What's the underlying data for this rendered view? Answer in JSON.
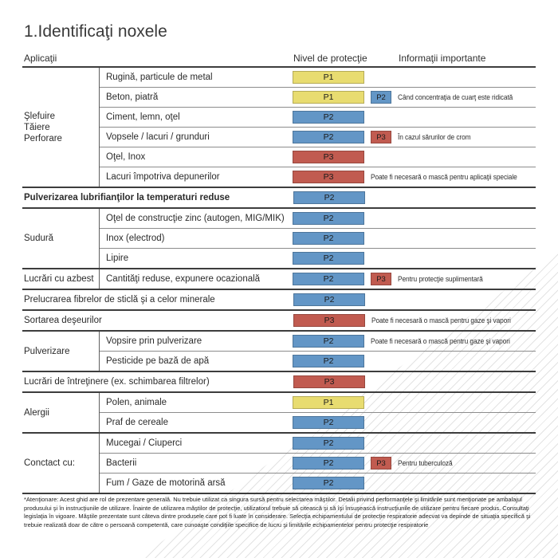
{
  "title": "1.Identificaţi noxele",
  "columns": {
    "applications": "Aplicaţii",
    "protection": "Nivel de protecţie",
    "info": "Informaţii importante"
  },
  "badge_colors": {
    "P1": "#e8dc70",
    "P2": "#6396c6",
    "P3": "#c15b50"
  },
  "table": {
    "sections": [
      {
        "category": [
          "Şlefuire",
          "Tăiere",
          "Perforare"
        ],
        "rows": [
          {
            "label": "Rugină, particule de metal",
            "badge": "P1"
          },
          {
            "label": "Beton, piatră",
            "badge": "P1",
            "badge2": "P2",
            "note": "Când concentraţia de cuarţ este ridicată"
          },
          {
            "label": "Ciment, lemn, oţel",
            "badge": "P2"
          },
          {
            "label": "Vopsele / lacuri / grunduri",
            "badge": "P2",
            "badge2": "P3",
            "note": "În cazul sărurilor de crom"
          },
          {
            "label": "Oţel, Inox",
            "badge": "P3"
          },
          {
            "label": "Lacuri împotriva depunerilor",
            "badge": "P3",
            "note": "Poate fi necesară o mască pentru aplicaţii speciale"
          }
        ]
      },
      {
        "rows": [
          {
            "label": "Pulverizarea lubrifianţilor la temperaturi reduse",
            "badge": "P2",
            "bold": true
          }
        ]
      },
      {
        "category": [
          "Sudură"
        ],
        "rows": [
          {
            "label": "Oţel de construcţie zinc (autogen, MIG/MIK)",
            "badge": "P2"
          },
          {
            "label": "Inox (electrod)",
            "badge": "P2"
          },
          {
            "label": "Lipire",
            "badge": "P2"
          }
        ]
      },
      {
        "category": [
          "Lucrări cu azbest"
        ],
        "rows": [
          {
            "label": "Cantităţi reduse, expunere ocazională",
            "badge": "P2",
            "badge2": "P3",
            "note": "Pentru protecţie suplimentară"
          }
        ]
      },
      {
        "rows": [
          {
            "label": "Prelucrarea fibrelor de sticlă şi a celor minerale",
            "badge": "P2"
          }
        ]
      },
      {
        "rows": [
          {
            "label": "Sortarea deşeurilor",
            "badge": "P3",
            "note": "Poate fi necesară o mască pentru gaze şi vapori"
          }
        ]
      },
      {
        "category": [
          "Pulverizare"
        ],
        "rows": [
          {
            "label": "Vopsire prin pulverizare",
            "badge": "P2",
            "note": "Poate fi necesară o mască pentru gaze şi vapori"
          },
          {
            "label": "Pesticide pe bază de apă",
            "badge": "P2"
          }
        ]
      },
      {
        "rows": [
          {
            "label": "Lucrări de întreţinere (ex. schimbarea filtrelor)",
            "badge": "P3"
          }
        ]
      },
      {
        "category": [
          "Alergii"
        ],
        "rows": [
          {
            "label": "Polen, animale",
            "badge": "P1"
          },
          {
            "label": "Praf de cereale",
            "badge": "P2"
          }
        ]
      },
      {
        "category": [
          "Conctact cu:"
        ],
        "rows": [
          {
            "label": "Mucegai / Ciuperci",
            "badge": "P2"
          },
          {
            "label": "Bacterii",
            "badge": "P2",
            "badge2": "P3",
            "note": "Pentru tuberculoză"
          },
          {
            "label": "Fum / Gaze de motorină arsă",
            "badge": "P2"
          }
        ]
      }
    ]
  },
  "footnote": "*Atenţionare: Acest ghid are rol de prezentare generală. Nu trebuie utilizat ca singura sursă pentru selectarea măştilor. Detalii privind performanţele şi limitările sunt menţionate pe ambalajul produsului şi în instrucţiunile de utilizare. Înainte de utilizarea măştilor de protecţie, utilizatorul trebuie să citească şi să îşi însuşească instrucţiunile de utilizare pentru fiecare produs. Consultaţi legislaţia în vigoare. Măştile prezentate sunt câteva dintre produsele care pot fi luate în considerare. Selecţia echipamentului de protecţie respiratorie adecvat va depinde de situaţia specifică şi trebuie realizată doar de către o persoană competentă, care cunoaşte condiţiile specifice de lucru şi limitările echipamentelor pentru protecţie respiratorie"
}
